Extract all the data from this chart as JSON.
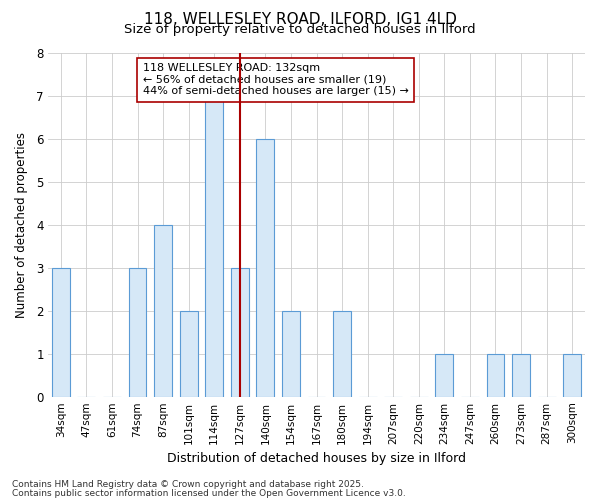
{
  "title1": "118, WELLESLEY ROAD, ILFORD, IG1 4LD",
  "title2": "Size of property relative to detached houses in Ilford",
  "xlabel": "Distribution of detached houses by size in Ilford",
  "ylabel": "Number of detached properties",
  "categories": [
    "34sqm",
    "47sqm",
    "61sqm",
    "74sqm",
    "87sqm",
    "101sqm",
    "114sqm",
    "127sqm",
    "140sqm",
    "154sqm",
    "167sqm",
    "180sqm",
    "194sqm",
    "207sqm",
    "220sqm",
    "234sqm",
    "247sqm",
    "260sqm",
    "273sqm",
    "287sqm",
    "300sqm"
  ],
  "values": [
    3,
    0,
    0,
    3,
    4,
    2,
    7,
    3,
    6,
    2,
    0,
    2,
    0,
    0,
    0,
    1,
    0,
    1,
    1,
    0,
    1
  ],
  "bar_color": "#d6e8f7",
  "bar_edgecolor": "#5b9bd5",
  "highlight_index": 7,
  "highlight_color": "#aa0000",
  "ylim": [
    0,
    8
  ],
  "yticks": [
    0,
    1,
    2,
    3,
    4,
    5,
    6,
    7,
    8
  ],
  "annotation_title": "118 WELLESLEY ROAD: 132sqm",
  "annotation_line1": "← 56% of detached houses are smaller (19)",
  "annotation_line2": "44% of semi-detached houses are larger (15) →",
  "footnote1": "Contains HM Land Registry data © Crown copyright and database right 2025.",
  "footnote2": "Contains public sector information licensed under the Open Government Licence v3.0.",
  "bg_color": "#ffffff",
  "plot_bg_color": "#ffffff",
  "grid_color": "#cccccc",
  "title_fontsize": 11,
  "subtitle_fontsize": 9.5,
  "tick_fontsize": 7.5,
  "ylabel_fontsize": 8.5,
  "xlabel_fontsize": 9,
  "annotation_fontsize": 8,
  "footnote_fontsize": 6.5
}
